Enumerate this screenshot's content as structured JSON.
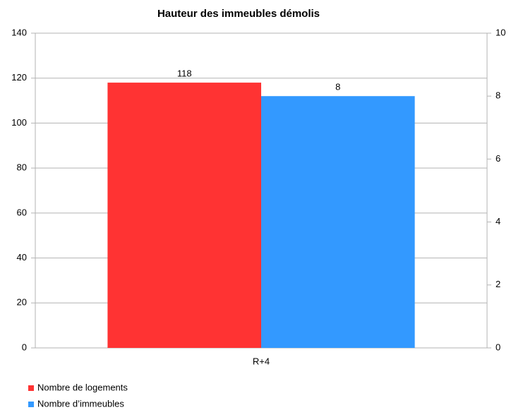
{
  "chart_data": {
    "type": "bar",
    "title": "Hauteur des immeubles démolis",
    "categories": [
      "R+4"
    ],
    "series": [
      {
        "name": "Nombre de logements",
        "color": "#ff3333",
        "values": [
          118
        ]
      },
      {
        "name": "Nombre d’immeubles",
        "color": "#3399ff",
        "values": [
          8
        ],
        "axis": "y2"
      }
    ],
    "ylim": [
      0,
      140
    ],
    "yticks": [
      0,
      20,
      40,
      60,
      80,
      100,
      120,
      140
    ],
    "y2lim": [
      0,
      10
    ],
    "y2ticks": [
      0,
      2,
      4,
      6,
      8,
      10
    ],
    "grid": true,
    "legend": "bottom-left"
  }
}
